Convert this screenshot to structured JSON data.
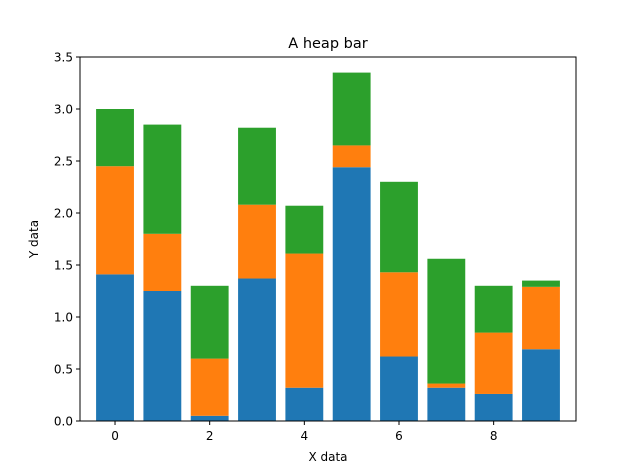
{
  "chart_data": {
    "type": "bar",
    "stacked": true,
    "title": "A heap bar",
    "xlabel": "X data",
    "ylabel": "Y data",
    "x": [
      0,
      1,
      2,
      3,
      4,
      5,
      6,
      7,
      8,
      9
    ],
    "series": [
      {
        "color": "#1f77b4",
        "values": [
          1.41,
          1.25,
          0.05,
          1.37,
          0.32,
          2.44,
          0.62,
          0.32,
          0.26,
          0.69
        ]
      },
      {
        "color": "#ff7f0e",
        "values": [
          1.04,
          0.55,
          0.55,
          0.71,
          1.29,
          0.21,
          0.81,
          0.04,
          0.59,
          0.6
        ]
      },
      {
        "color": "#2ca02c",
        "values": [
          0.55,
          1.05,
          0.7,
          0.74,
          0.46,
          0.7,
          0.87,
          1.2,
          0.45,
          0.06
        ]
      }
    ],
    "xlim": [
      -0.74,
      9.74
    ],
    "ylim": [
      0,
      3.5
    ],
    "xticks": [
      "0",
      "2",
      "4",
      "6",
      "8"
    ],
    "yticks": [
      "0.0",
      "0.5",
      "1.0",
      "1.5",
      "2.0",
      "2.5",
      "3.0",
      "3.5"
    ],
    "grid": false,
    "legend": false
  }
}
